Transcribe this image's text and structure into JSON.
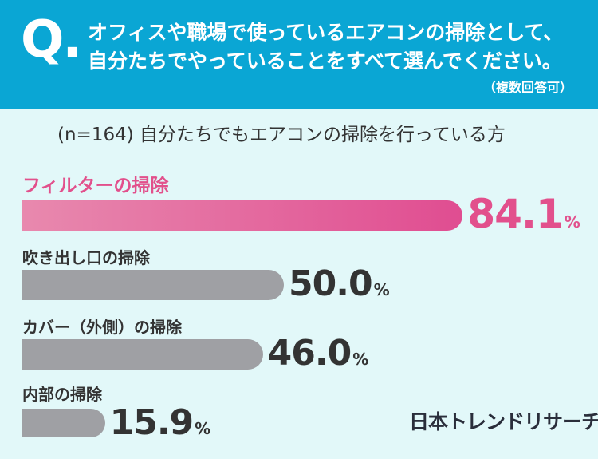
{
  "header": {
    "q_mark": "Q.",
    "question_line1": "オフィスや職場で使っているエアコンの掃除として、",
    "question_line2": "自分たちでやっていることをすべて選んでください。",
    "note": "（複数回答可）"
  },
  "sample_note": "(n=164) 自分たちでもエアコンの掃除を行っている方",
  "brand": "日本トレンドリサーチ",
  "colors": {
    "header_bg": "#0aa6d4",
    "page_bg": "#e2f8f9",
    "highlight": "#e2508c",
    "bar_gray": "#9fa0a4"
  },
  "chart_data": {
    "type": "bar",
    "orientation": "horizontal",
    "categories": [
      "フィルターの掃除",
      "吹き出し口の掃除",
      "カバー（外側）の掃除",
      "内部の掃除"
    ],
    "values": [
      84.1,
      50.0,
      46.0,
      15.9
    ],
    "value_labels": [
      "84.1",
      "50.0",
      "46.0",
      "15.9"
    ],
    "unit": "%",
    "highlight_index": 0,
    "xlim": [
      0,
      100
    ],
    "title": "",
    "xlabel": "",
    "ylabel": ""
  }
}
